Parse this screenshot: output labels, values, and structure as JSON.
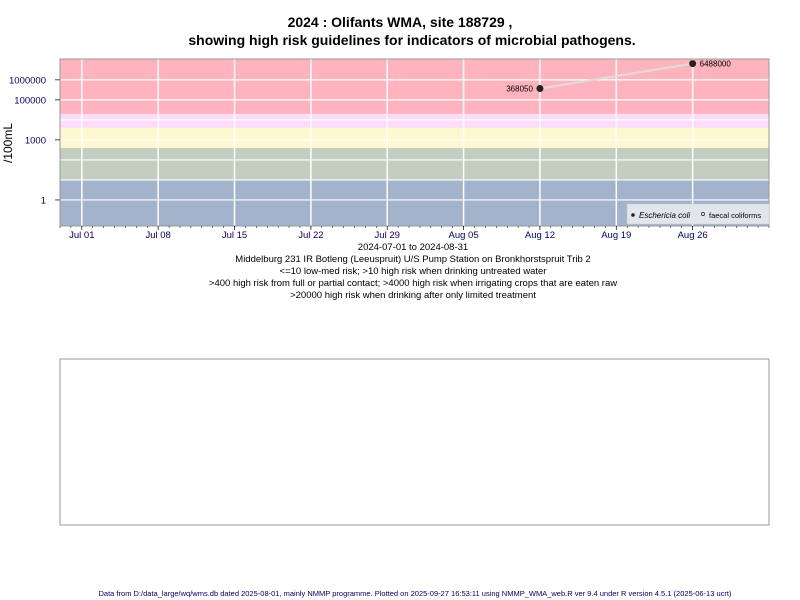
{
  "chart_data": {
    "type": "scatter",
    "title_line1": "2024 : Olifants WMA, site 188729 ,",
    "title_line2": "showing high risk guidelines for indicators of microbial pathogens.",
    "ylabel": "/100mL",
    "y_scale": "log",
    "ylim": [
      0.05,
      11000000
    ],
    "y_ticks": [
      1,
      1000,
      100000,
      1000000
    ],
    "y_tick_labels": [
      "1",
      "1000",
      "100000",
      "1000000"
    ],
    "y_gridlines": [
      1,
      10,
      100,
      1000,
      10000,
      100000,
      1000000
    ],
    "xlim": [
      "2024-06-29",
      "2024-09-02"
    ],
    "x_ticks": [
      "2024-07-01",
      "2024-07-08",
      "2024-07-15",
      "2024-07-22",
      "2024-07-29",
      "2024-08-05",
      "2024-08-12",
      "2024-08-19",
      "2024-08-26"
    ],
    "x_tick_labels": [
      "Jul 01",
      "Jul 08",
      "Jul 15",
      "Jul 22",
      "Jul 29",
      "Aug 05",
      "Aug 12",
      "Aug 19",
      "Aug 26"
    ],
    "grid": true,
    "bands": [
      {
        "from": 0.05,
        "to": 10,
        "color": "#a2b3cb"
      },
      {
        "from": 10,
        "to": 400,
        "color": "#c3cdc0"
      },
      {
        "from": 400,
        "to": 4000,
        "color": "#fdf8cf"
      },
      {
        "from": 4000,
        "to": 20000,
        "color": "#fddcf9"
      },
      {
        "from": 20000,
        "to": 11000000,
        "color": "#feb3bd"
      }
    ],
    "series": [
      {
        "name": "Eschericia coli",
        "marker": "filled",
        "color": "#222222",
        "line_color": "#dddddd",
        "x": [
          "2024-08-12",
          "2024-08-26"
        ],
        "y": [
          368050,
          6488000
        ],
        "labels": [
          "368050",
          "6488000"
        ]
      },
      {
        "name": "faecal coliforms",
        "marker": "open",
        "color": "#222222",
        "x": [],
        "y": []
      }
    ],
    "legend_position": "bottom-right",
    "date_range": "2024-07-01 to 2024-08-31",
    "captions": [
      "Middelburg 231 IR Botleng (Leeuspruit) U/S Pump Station on Bronkhorstspruit Trib 2",
      "<=10 low-med risk; >10 high risk when drinking untreated water",
      ">400 high risk from full or partial contact; >4000 high risk when irrigating crops that are eaten raw",
      ">20000 high risk when drinking after only limited treatment"
    ]
  },
  "footer": "Data from D:/data_large/wq/wms.db dated 2025-08-01, mainly NMMP programme. Plotted on 2025-09-27 16:53:11 using NMMP_WMA_web.R ver 9.4 under R version 4.5.1 (2025-06-13 ucrt)"
}
